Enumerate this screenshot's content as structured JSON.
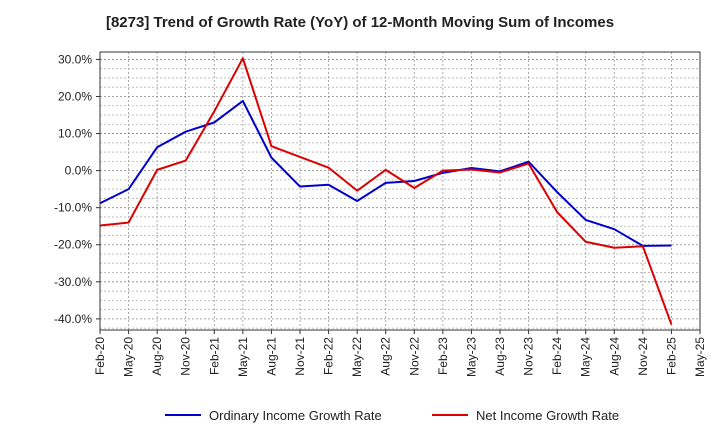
{
  "chart_data": {
    "type": "line",
    "title": "[8273]  Trend of Growth Rate (YoY) of 12-Month Moving Sum of Incomes",
    "xlabel": "",
    "ylabel": "",
    "ylim": [
      -43,
      32
    ],
    "grid": true,
    "legend_position": "bottom",
    "x_ticks": [
      "Feb-20",
      "May-20",
      "Aug-20",
      "Nov-20",
      "Feb-21",
      "May-21",
      "Aug-21",
      "Nov-21",
      "Feb-22",
      "May-22",
      "Aug-22",
      "Nov-22",
      "Feb-23",
      "May-23",
      "Aug-23",
      "Nov-23",
      "Feb-24",
      "May-24",
      "Aug-24",
      "Nov-24",
      "Feb-25",
      "May-25"
    ],
    "y_ticks": [
      30,
      20,
      10,
      0,
      -10,
      -20,
      -30,
      -40
    ],
    "y_tick_labels": [
      "30.0%",
      "20.0%",
      "10.0%",
      "0.0%",
      "-10.0%",
      "-20.0%",
      "-30.0%",
      "-40.0%"
    ],
    "series": [
      {
        "name": "Ordinary Income Growth Rate",
        "color": "#0000cc",
        "x": [
          "Feb-20",
          "May-20",
          "Aug-20",
          "Nov-20",
          "Feb-21",
          "May-21",
          "Aug-21",
          "Nov-21",
          "Feb-22",
          "May-22",
          "Aug-22",
          "Nov-22",
          "Feb-23",
          "May-23",
          "Aug-23",
          "Nov-23",
          "Feb-24",
          "May-24",
          "Aug-24",
          "Nov-24",
          "Feb-25"
        ],
        "values": [
          -8.8,
          -5.0,
          6.3,
          10.5,
          13.0,
          18.8,
          3.5,
          -4.3,
          -3.8,
          -8.2,
          -3.3,
          -2.8,
          -0.6,
          0.7,
          -0.2,
          2.4,
          -5.8,
          -13.3,
          -15.8,
          -20.3,
          -20.2
        ]
      },
      {
        "name": "Net Income Growth Rate",
        "color": "#dd0000",
        "x": [
          "Feb-20",
          "May-20",
          "Aug-20",
          "Nov-20",
          "Feb-21",
          "May-21",
          "Aug-21",
          "Nov-21",
          "Feb-22",
          "May-22",
          "Aug-22",
          "Nov-22",
          "Feb-23",
          "May-23",
          "Aug-23",
          "Nov-23",
          "Feb-24",
          "May-24",
          "Aug-24",
          "Nov-24",
          "Feb-25"
        ],
        "values": [
          -14.8,
          -14.0,
          0.2,
          2.7,
          16.0,
          30.3,
          6.6,
          3.7,
          0.8,
          -5.4,
          0.2,
          -4.7,
          0.0,
          0.3,
          -0.5,
          1.9,
          -11.2,
          -19.2,
          -20.8,
          -20.4,
          -41.5
        ]
      }
    ]
  }
}
